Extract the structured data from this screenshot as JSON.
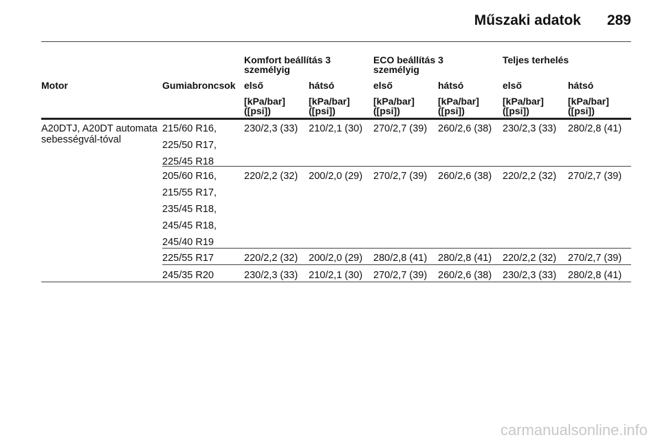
{
  "header": {
    "section_title": "Műszaki adatok",
    "page_number": "289"
  },
  "table": {
    "group_headers": [
      "Komfort beállítás 3 személyig",
      "ECO beállítás 3 személyig",
      "Teljes terhelés"
    ],
    "col_motor": "Motor",
    "col_tires": "Gumiabroncsok",
    "sub_headers": [
      "első",
      "hátsó",
      "első",
      "hátsó",
      "első",
      "hátsó"
    ],
    "unit": "[kPa/bar] ([psi])",
    "motor": "A20DTJ, A20DT automata sebességvál-tóval",
    "rows": [
      {
        "tires": [
          "215/60 R16,",
          "225/50 R17,",
          "225/45 R18"
        ],
        "values": [
          "230/2,3 (33)",
          "210/2,1 (30)",
          "270/2,7 (39)",
          "260/2,6 (38)",
          "230/2,3 (33)",
          "280/2,8 (41)"
        ]
      },
      {
        "tires": [
          "205/60 R16,",
          "215/55 R17,",
          "235/45 R18,",
          "245/45 R18,",
          "245/40 R19"
        ],
        "values": [
          "220/2,2 (32)",
          "200/2,0 (29)",
          "270/2,7 (39)",
          "260/2,6 (38)",
          "220/2,2 (32)",
          "270/2,7 (39)"
        ]
      },
      {
        "tires": [
          "225/55 R17"
        ],
        "values": [
          "220/2,2 (32)",
          "200/2,0 (29)",
          "280/2,8 (41)",
          "280/2,8 (41)",
          "220/2,2 (32)",
          "270/2,7 (39)"
        ]
      },
      {
        "tires": [
          "245/35 R20"
        ],
        "values": [
          "230/2,3 (33)",
          "210/2,1 (30)",
          "270/2,7 (39)",
          "260/2,6 (38)",
          "230/2,3 (33)",
          "280/2,8 (41)"
        ]
      }
    ]
  },
  "watermark": "carmanualsonline.info"
}
